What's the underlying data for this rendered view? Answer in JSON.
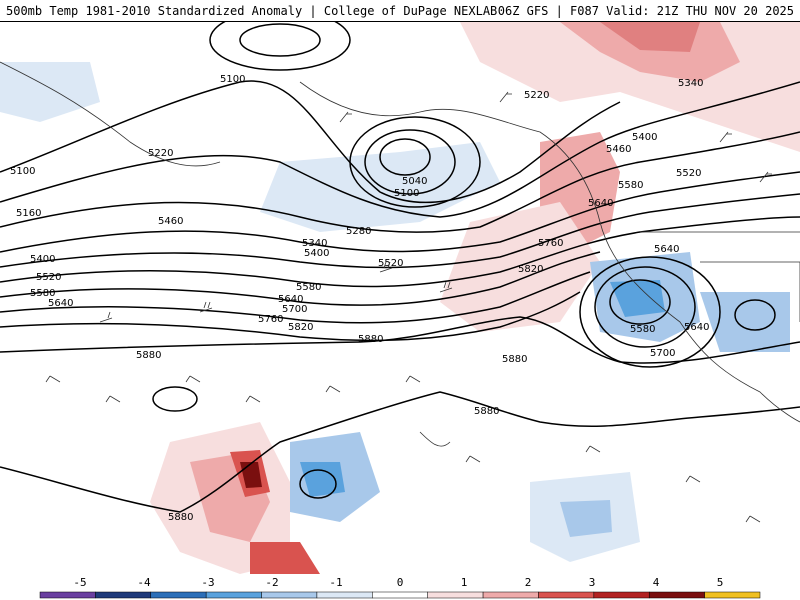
{
  "header": {
    "title_left": "500mb Temp 1981-2010 Standardized Anomaly | College of DuPage NEXLAB",
    "title_right": "06Z GFS | F087 Valid: 21Z THU NOV 20 2025"
  },
  "colorbar": {
    "tick_labels": [
      "-5",
      "-4",
      "-3",
      "-2",
      "-1",
      "0",
      "1",
      "2",
      "3",
      "4",
      "5"
    ],
    "colors": [
      "#6a3fa0",
      "#1f3a7a",
      "#2c6fb8",
      "#5aa2dd",
      "#a8c8ea",
      "#dce8f5",
      "#ffffff",
      "#f7dede",
      "#eeaaaa",
      "#d9534f",
      "#b22222",
      "#7a0f0f",
      "#f0c020"
    ]
  },
  "contours": {
    "labels": [
      "5100",
      "5220",
      "5100",
      "5160",
      "5460",
      "5400",
      "5520",
      "5580",
      "5640",
      "5040",
      "5100",
      "5280",
      "5340",
      "5400",
      "5520",
      "5580",
      "5640",
      "5700",
      "5760",
      "5820",
      "5880",
      "5220",
      "5340",
      "5400",
      "5460",
      "5520",
      "5580",
      "5640",
      "5760",
      "5820",
      "5640",
      "5580",
      "5640",
      "5700",
      "5880",
      "5880",
      "5880"
    ]
  }
}
